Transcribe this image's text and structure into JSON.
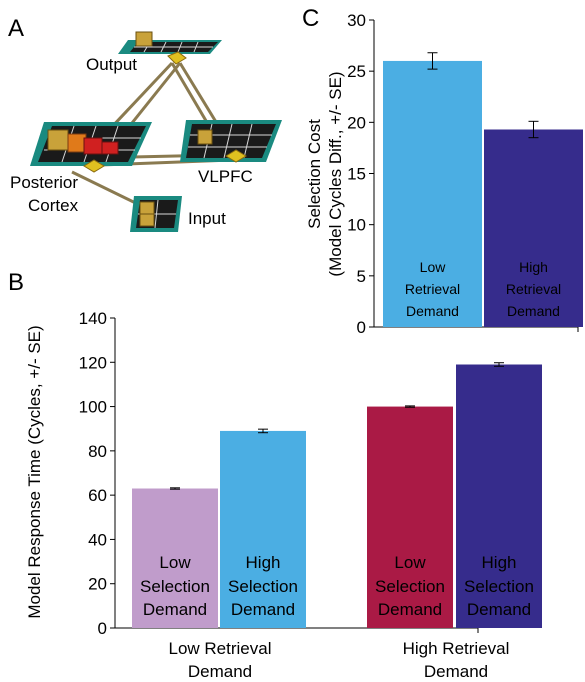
{
  "panels": {
    "a_letter": "A",
    "b_letter": "B",
    "c_letter": "C"
  },
  "network": {
    "layers": [
      {
        "id": "output",
        "label": "Output"
      },
      {
        "id": "posterior",
        "label_line1": "Posterior",
        "label_line2": "Cortex"
      },
      {
        "id": "vlpfc",
        "label": "VLPFC"
      },
      {
        "id": "input",
        "label": "Input"
      }
    ],
    "colors": {
      "layer_frame": "#1a8a80",
      "layer_fill": "#1a1a1a",
      "grid": "#d8d8d8",
      "unit_gold": "#c9a23a",
      "unit_orange": "#e07a1a",
      "unit_red": "#d02020",
      "projection": "#8a7a50"
    }
  },
  "chart_data": [
    {
      "panel": "B",
      "type": "bar",
      "ylabel": "Model Response Time (Cycles, +/- SE)",
      "ylim": [
        0,
        140
      ],
      "yticks": [
        0,
        20,
        40,
        60,
        80,
        100,
        120,
        140
      ],
      "groups": [
        {
          "label_line1": "Low Retrieval",
          "label_line2": "Demand"
        },
        {
          "label_line1": "High Retrieval",
          "label_line2": "Demand"
        }
      ],
      "bars": [
        {
          "label_line1": "Low",
          "label_line2": "Selection",
          "label_line3": "Demand",
          "value": 63,
          "error": 0.3,
          "color": "#c09ccb"
        },
        {
          "label_line1": "High",
          "label_line2": "Selection",
          "label_line3": "Demand",
          "value": 89,
          "error": 0.8,
          "color": "#4baee3"
        },
        {
          "label_line1": "Low",
          "label_line2": "Selection",
          "label_line3": "Demand",
          "value": 100,
          "error": 0.3,
          "color": "#aa1a45"
        },
        {
          "label_line1": "High",
          "label_line2": "Selection",
          "label_line3": "Demand",
          "value": 119,
          "error": 0.8,
          "color": "#362c8c"
        }
      ]
    },
    {
      "panel": "C",
      "type": "bar",
      "ylabel_line1": "Selection Cost",
      "ylabel_line2": "(Model Cycles Diff., +/- SE)",
      "ylim": [
        0,
        30
      ],
      "yticks": [
        0,
        5,
        10,
        15,
        20,
        25,
        30
      ],
      "bars": [
        {
          "label_line1": "Low",
          "label_line2": "Retrieval",
          "label_line3": "Demand",
          "value": 26,
          "error": 0.8,
          "color": "#4baee3"
        },
        {
          "label_line1": "High",
          "label_line2": "Retrieval",
          "label_line3": "Demand",
          "value": 19.3,
          "error": 0.8,
          "color": "#362c8c"
        }
      ]
    }
  ]
}
